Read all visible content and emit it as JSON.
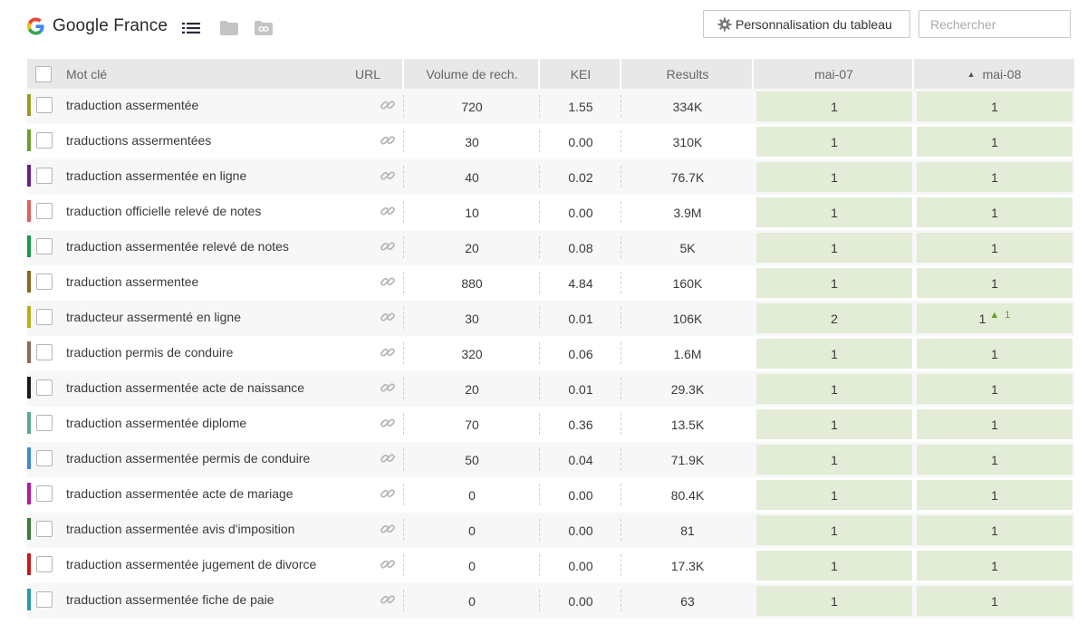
{
  "header": {
    "project_title": "Google France",
    "customize_label": "Personnalisation du tableau",
    "search_placeholder": "Rechercher"
  },
  "colors": {
    "header_bg": "#e8e8e8",
    "position_cell": "#e2ecd6",
    "positive_change": "#6a9f2a"
  },
  "table": {
    "columns": {
      "keyword": "Mot clé",
      "url": "URL",
      "volume": "Volume de rech.",
      "kei": "KEI",
      "results": "Results",
      "date1": "mai-07",
      "date2": "mai-08"
    },
    "sorted_column": "date2",
    "rows": [
      {
        "color": "#9a9a1e",
        "keyword": "traduction assermentée",
        "volume": "720",
        "kei": "1.55",
        "results": "334K",
        "pos1": "1",
        "pos2": "1",
        "change": ""
      },
      {
        "color": "#6aa02a",
        "keyword": "traductions assermentées",
        "volume": "30",
        "kei": "0.00",
        "results": "310K",
        "pos1": "1",
        "pos2": "1",
        "change": ""
      },
      {
        "color": "#6a1e8a",
        "keyword": "traduction assermentée en ligne",
        "volume": "40",
        "kei": "0.02",
        "results": "76.7K",
        "pos1": "1",
        "pos2": "1",
        "change": ""
      },
      {
        "color": "#e06060",
        "keyword": "traduction officielle relevé de notes",
        "volume": "10",
        "kei": "0.00",
        "results": "3.9M",
        "pos1": "1",
        "pos2": "1",
        "change": ""
      },
      {
        "color": "#1a9a4a",
        "keyword": "traduction assermentée relevé de notes",
        "volume": "20",
        "kei": "0.08",
        "results": "5K",
        "pos1": "1",
        "pos2": "1",
        "change": ""
      },
      {
        "color": "#8a6a1e",
        "keyword": "traduction assermentee",
        "volume": "880",
        "kei": "4.84",
        "results": "160K",
        "pos1": "1",
        "pos2": "1",
        "change": ""
      },
      {
        "color": "#b8b01a",
        "keyword": "traducteur assermenté en ligne",
        "volume": "30",
        "kei": "0.01",
        "results": "106K",
        "pos1": "2",
        "pos2": "1",
        "change": "1"
      },
      {
        "color": "#8a6a5a",
        "keyword": "traduction permis de conduire",
        "volume": "320",
        "kei": "0.06",
        "results": "1.6M",
        "pos1": "1",
        "pos2": "1",
        "change": ""
      },
      {
        "color": "#1a1a1a",
        "keyword": "traduction assermentée acte de naissance",
        "volume": "20",
        "kei": "0.01",
        "results": "29.3K",
        "pos1": "1",
        "pos2": "1",
        "change": ""
      },
      {
        "color": "#5aaa8a",
        "keyword": "traduction assermentée diplome",
        "volume": "70",
        "kei": "0.36",
        "results": "13.5K",
        "pos1": "1",
        "pos2": "1",
        "change": ""
      },
      {
        "color": "#3a8ad8",
        "keyword": "traduction assermentée permis de conduire",
        "volume": "50",
        "kei": "0.04",
        "results": "71.9K",
        "pos1": "1",
        "pos2": "1",
        "change": ""
      },
      {
        "color": "#b01aa0",
        "keyword": "traduction assermentée acte de mariage",
        "volume": "0",
        "kei": "0.00",
        "results": "80.4K",
        "pos1": "1",
        "pos2": "1",
        "change": ""
      },
      {
        "color": "#3a7a3a",
        "keyword": "traduction assermentée avis d'imposition",
        "volume": "0",
        "kei": "0.00",
        "results": "81",
        "pos1": "1",
        "pos2": "1",
        "change": ""
      },
      {
        "color": "#c81a1a",
        "keyword": "traduction assermentée jugement de divorce",
        "volume": "0",
        "kei": "0.00",
        "results": "17.3K",
        "pos1": "1",
        "pos2": "1",
        "change": ""
      },
      {
        "color": "#2a9aaa",
        "keyword": "traduction assermentée fiche de paie",
        "volume": "0",
        "kei": "0.00",
        "results": "63",
        "pos1": "1",
        "pos2": "1",
        "change": ""
      }
    ]
  }
}
